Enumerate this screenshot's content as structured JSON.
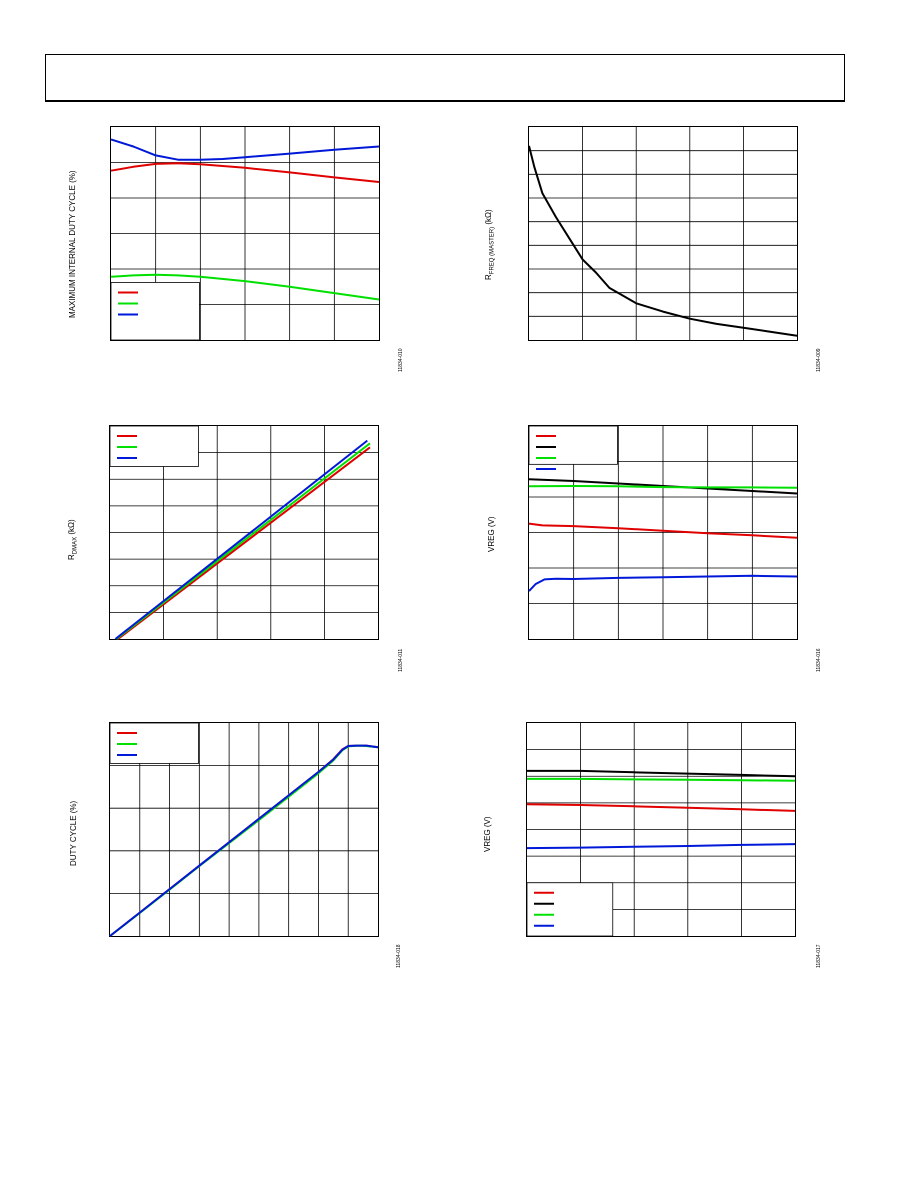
{
  "chart_data": [
    {
      "id": "c1",
      "type": "line",
      "ylabel": "MAXIMUM INTERNAL DUTY CYCLE (%)",
      "figcode": "11834-010",
      "xlim": [
        0,
        6
      ],
      "ylim": [
        0,
        6
      ],
      "xgrid": 6,
      "ygrid": 6,
      "legend": "bottom-left",
      "series": [
        {
          "color": "#e00000",
          "x": [
            0,
            0.5,
            1,
            1.5,
            2,
            3,
            4,
            5,
            6
          ],
          "y": [
            4.77,
            4.88,
            4.96,
            4.98,
            4.95,
            4.85,
            4.72,
            4.58,
            4.45
          ]
        },
        {
          "color": "#00e000",
          "x": [
            0,
            0.5,
            1,
            1.5,
            2,
            3,
            4,
            5,
            6
          ],
          "y": [
            1.78,
            1.82,
            1.84,
            1.82,
            1.78,
            1.66,
            1.5,
            1.32,
            1.14
          ]
        },
        {
          "color": "#0018d8",
          "x": [
            0,
            0.5,
            1,
            1.5,
            2,
            2.5,
            3,
            4,
            5,
            6
          ],
          "y": [
            5.65,
            5.45,
            5.2,
            5.08,
            5.08,
            5.1,
            5.15,
            5.25,
            5.36,
            5.45
          ]
        }
      ]
    },
    {
      "id": "c2",
      "type": "line",
      "ylabel": "R_FREQ(MASTER) (kΩ)",
      "figcode": "11834-009",
      "xlim": [
        0,
        5
      ],
      "ylim": [
        0,
        9
      ],
      "xgrid": 5,
      "ygrid": 9,
      "series": [
        {
          "color": "#000000",
          "x": [
            0,
            0.1,
            0.25,
            0.5,
            0.75,
            1,
            1.25,
            1.5,
            2,
            2.5,
            3,
            3.5,
            4,
            4.5,
            5
          ],
          "y": [
            8.2,
            7.3,
            6.2,
            5.2,
            4.3,
            3.4,
            2.85,
            2.2,
            1.55,
            1.2,
            0.9,
            0.68,
            0.52,
            0.35,
            0.18
          ]
        }
      ]
    },
    {
      "id": "c3",
      "type": "line",
      "ylabel": "R_DMAX (kΩ)",
      "figcode": "11834-011",
      "xlim": [
        0,
        5
      ],
      "ylim": [
        0,
        8
      ],
      "xgrid": 5,
      "ygrid": 8,
      "legend": "top-left",
      "series": [
        {
          "color": "#e00000",
          "x": [
            0.15,
            4.85
          ],
          "y": [
            0.0,
            7.2
          ]
        },
        {
          "color": "#00e000",
          "x": [
            0.12,
            4.85
          ],
          "y": [
            0.0,
            7.35
          ]
        },
        {
          "color": "#0018d8",
          "x": [
            0.1,
            4.8
          ],
          "y": [
            0.0,
            7.45
          ]
        }
      ]
    },
    {
      "id": "c4",
      "type": "line",
      "ylabel": "VREG (V)",
      "figcode": "11834-016",
      "xlim": [
        0,
        6
      ],
      "ylim": [
        0,
        6
      ],
      "xgrid": 6,
      "ygrid": 6,
      "legend": "top-left",
      "series": [
        {
          "color": "#e00000",
          "x": [
            0,
            0.3,
            1,
            2,
            3,
            4,
            5,
            6
          ],
          "y": [
            3.25,
            3.2,
            3.18,
            3.12,
            3.05,
            2.98,
            2.92,
            2.85
          ]
        },
        {
          "color": "#000000",
          "x": [
            0,
            1,
            2,
            3,
            4,
            5,
            6
          ],
          "y": [
            4.5,
            4.45,
            4.38,
            4.31,
            4.24,
            4.17,
            4.1
          ]
        },
        {
          "color": "#00e000",
          "x": [
            0,
            1,
            2,
            3,
            4,
            5,
            6
          ],
          "y": [
            4.3,
            4.31,
            4.3,
            4.28,
            4.27,
            4.27,
            4.26
          ]
        },
        {
          "color": "#0018d8",
          "x": [
            0,
            0.15,
            0.35,
            0.6,
            1,
            2,
            3,
            4,
            5,
            6
          ],
          "y": [
            1.35,
            1.55,
            1.68,
            1.7,
            1.69,
            1.72,
            1.74,
            1.76,
            1.78,
            1.76
          ]
        }
      ]
    },
    {
      "id": "c5",
      "type": "line",
      "ylabel": "DUTY CYCLE (%)",
      "figcode": "11834-018",
      "xlim": [
        0,
        9
      ],
      "ylim": [
        0,
        5
      ],
      "xgrid": 9,
      "ygrid": 5,
      "legend": "top-left",
      "series": [
        {
          "color": "#e00000",
          "x": [
            0,
            1,
            2,
            3,
            4,
            5,
            6,
            7,
            7.5,
            7.8,
            8.0,
            8.3,
            8.6,
            9
          ],
          "y": [
            0.0,
            0.55,
            1.1,
            1.65,
            2.2,
            2.75,
            3.3,
            3.85,
            4.15,
            4.38,
            4.46,
            4.47,
            4.47,
            4.43
          ]
        },
        {
          "color": "#00e000",
          "x": [
            0,
            1,
            2,
            3,
            4,
            5,
            6,
            7,
            7.5,
            7.8,
            8.0,
            8.3,
            8.6,
            9
          ],
          "y": [
            0.0,
            0.54,
            1.09,
            1.64,
            2.18,
            2.72,
            3.27,
            3.82,
            4.12,
            4.36,
            4.45,
            4.47,
            4.46,
            4.43
          ]
        },
        {
          "color": "#0018d8",
          "x": [
            0,
            1,
            2,
            3,
            4,
            5,
            6,
            7,
            7.5,
            7.8,
            8.0,
            8.3,
            8.6,
            9
          ],
          "y": [
            0.0,
            0.55,
            1.1,
            1.65,
            2.2,
            2.75,
            3.3,
            3.85,
            4.14,
            4.37,
            4.46,
            4.47,
            4.47,
            4.43
          ]
        }
      ]
    },
    {
      "id": "c6",
      "type": "line",
      "ylabel": "VREG (V)",
      "figcode": "11834-017",
      "xlim": [
        0,
        5
      ],
      "ylim": [
        0,
        8
      ],
      "xgrid": 5,
      "ygrid": 8,
      "legend": "bottom-left",
      "series": [
        {
          "color": "#e00000",
          "x": [
            0,
            1,
            2,
            3,
            4,
            5
          ],
          "y": [
            4.95,
            4.92,
            4.87,
            4.82,
            4.76,
            4.7
          ]
        },
        {
          "color": "#000000",
          "x": [
            0,
            1,
            2,
            3,
            4,
            5
          ],
          "y": [
            6.2,
            6.2,
            6.15,
            6.1,
            6.05,
            6.0
          ]
        },
        {
          "color": "#00e000",
          "x": [
            0,
            1,
            2,
            3,
            4,
            5
          ],
          "y": [
            5.9,
            5.9,
            5.88,
            5.87,
            5.85,
            5.83
          ]
        },
        {
          "color": "#0018d8",
          "x": [
            0,
            1,
            2,
            3,
            4,
            5
          ],
          "y": [
            3.3,
            3.32,
            3.35,
            3.38,
            3.42,
            3.45
          ]
        }
      ]
    }
  ]
}
